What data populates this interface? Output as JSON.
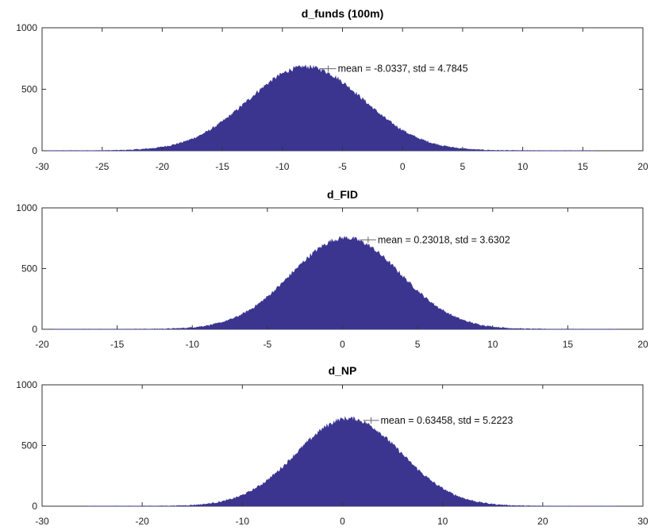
{
  "chart_data": [
    {
      "type": "bar",
      "title": "d_funds (100m)",
      "xlabel": "",
      "ylabel": "",
      "xlim": [
        -30,
        20
      ],
      "ylim": [
        0,
        1000
      ],
      "xticks": [
        -30,
        -25,
        -20,
        -15,
        -10,
        -5,
        0,
        5,
        10,
        15,
        20
      ],
      "yticks": [
        0,
        500,
        1000
      ],
      "distribution": "normal histogram",
      "mean": -8.0337,
      "std": 4.7845,
      "peak_count": 680,
      "data_range": [
        -30,
        16
      ],
      "annotation": "mean = -8.0337, std = 4.7845",
      "color": "#3b3590"
    },
    {
      "type": "bar",
      "title": "d_FID",
      "xlabel": "",
      "ylabel": "",
      "xlim": [
        -20,
        20
      ],
      "ylim": [
        0,
        1000
      ],
      "xticks": [
        -20,
        -15,
        -10,
        -5,
        0,
        5,
        10,
        15,
        20
      ],
      "yticks": [
        0,
        500,
        1000
      ],
      "distribution": "normal histogram",
      "mean": 0.23018,
      "std": 3.6302,
      "peak_count": 750,
      "data_range": [
        -19.2,
        18.5
      ],
      "annotation": "mean = 0.23018, std = 3.6302",
      "color": "#3b3590"
    },
    {
      "type": "bar",
      "title": "d_NP",
      "xlabel": "",
      "ylabel": "",
      "xlim": [
        -30,
        30
      ],
      "ylim": [
        0,
        1000
      ],
      "xticks": [
        -30,
        -20,
        -10,
        0,
        10,
        20,
        30
      ],
      "yticks": [
        0,
        500,
        1000
      ],
      "distribution": "normal histogram",
      "mean": 0.63458,
      "std": 5.2223,
      "peak_count": 720,
      "data_range": [
        -25.5,
        27.5
      ],
      "annotation": "mean = 0.63458, std = 5.2223",
      "color": "#3b3590"
    }
  ]
}
